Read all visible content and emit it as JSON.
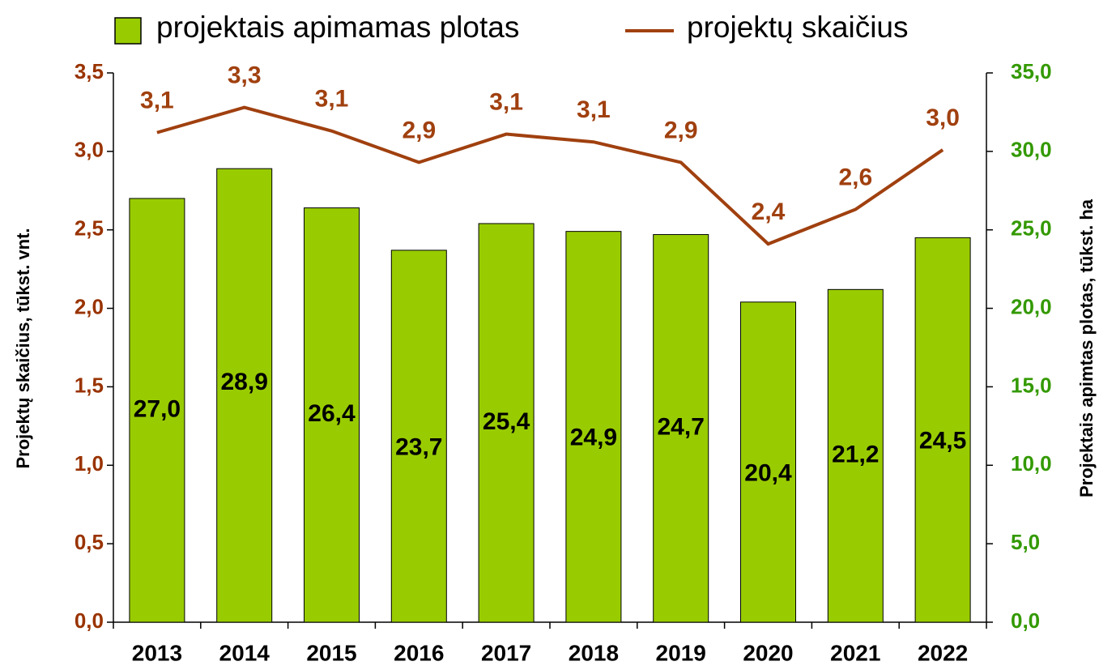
{
  "chart_data": {
    "type": "bar",
    "categories": [
      "2013",
      "2014",
      "2015",
      "2016",
      "2017",
      "2018",
      "2019",
      "2020",
      "2021",
      "2022"
    ],
    "series": [
      {
        "name": "projektais apimamas plotas",
        "type": "bar",
        "axis": "y2",
        "color": "#99cc00",
        "values": [
          27.0,
          28.9,
          26.4,
          23.7,
          25.4,
          24.9,
          24.7,
          20.4,
          21.2,
          24.5
        ],
        "value_labels": [
          "27,0",
          "28,9",
          "26,4",
          "23,7",
          "25,4",
          "24,9",
          "24,7",
          "20,4",
          "21,2",
          "24,5"
        ]
      },
      {
        "name": "projektų skaičius",
        "type": "line",
        "color": "#a0400f",
        "values": [
          3.12,
          3.28,
          3.13,
          2.93,
          3.11,
          3.06,
          2.93,
          2.41,
          2.63,
          3.01
        ],
        "value_labels": [
          "3,1",
          "3,3",
          "3,1",
          "2,9",
          "3,1",
          "3,1",
          "2,9",
          "2,4",
          "2,6",
          "3,0"
        ]
      }
    ],
    "ylabel": "Projektų skaičius, tūkst. vnt.",
    "y2label": "Projektais apimtas plotas, tūkst. ha",
    "ylim": [
      0,
      3.5
    ],
    "yticks": [
      {
        "value": 0,
        "label": "0,0"
      },
      {
        "value": 0.5,
        "label": "0,5"
      },
      {
        "value": 1,
        "label": "1,0"
      },
      {
        "value": 1.5,
        "label": "1,5"
      },
      {
        "value": 2,
        "label": "2,0"
      },
      {
        "value": 2.5,
        "label": "2,5"
      },
      {
        "value": 3,
        "label": "3,0"
      },
      {
        "value": 3.5,
        "label": "3,5"
      }
    ],
    "y2lim": [
      0,
      35
    ],
    "y2ticks": [
      {
        "value": 0,
        "label": "0,0"
      },
      {
        "value": 5,
        "label": "5,0"
      },
      {
        "value": 10,
        "label": "10,0"
      },
      {
        "value": 15,
        "label": "15,0"
      },
      {
        "value": 20,
        "label": "20,0"
      },
      {
        "value": 25,
        "label": "25,0"
      },
      {
        "value": 30,
        "label": "30,0"
      },
      {
        "value": 35,
        "label": "35,0"
      }
    ],
    "ytick_color": "#993300",
    "y2tick_color": "#339900",
    "legend": "top"
  }
}
